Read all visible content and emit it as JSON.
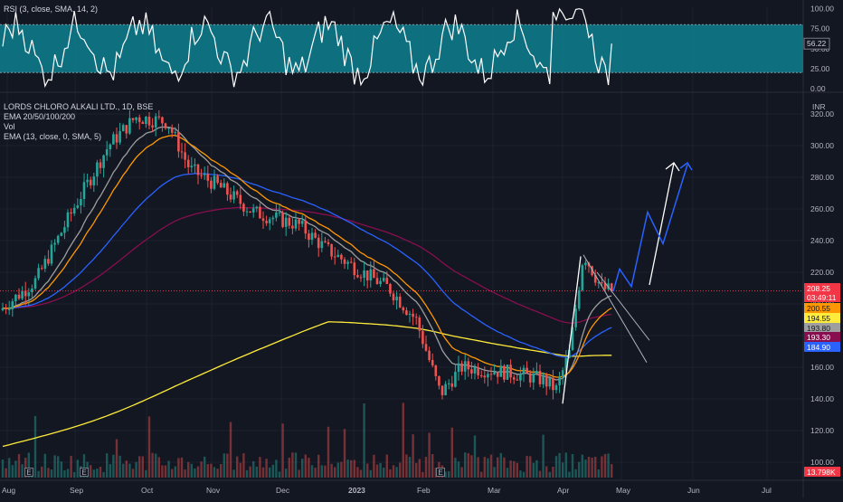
{
  "rsi_pane": {
    "legend": "RSI (3, close, SMA, 14, 2)",
    "band_color": "#0e7f8f",
    "current_value": "56.22",
    "y_ticks": [
      "100.00",
      "75.00",
      "50.00",
      "25.00",
      "0.00"
    ]
  },
  "price_pane": {
    "title": "LORDS CHLORO ALKALI LTD., 1D, BSE",
    "legend_lines": [
      "EMA 20/50/100/200",
      "Vol",
      "EMA (13, close, 0, SMA, 5)"
    ],
    "currency": "INR",
    "y_ticks": [
      "320.00",
      "300.00",
      "280.00",
      "260.00",
      "240.00",
      "220.00",
      "200.00",
      "180.00",
      "160.00",
      "140.00",
      "120.00",
      "100.00"
    ],
    "price_labels": [
      {
        "text": "208.25",
        "color": "#f23645"
      },
      {
        "text": "03:49:11",
        "color": "#f23645"
      },
      {
        "text": "200.55",
        "color": "#ff9800"
      },
      {
        "text": "194.55",
        "color": "#ffeb3b"
      },
      {
        "text": "193.80",
        "color": "#9e9e9e"
      },
      {
        "text": "193.30",
        "color": "#880e4f"
      },
      {
        "text": "184.90",
        "color": "#2962ff"
      },
      {
        "text": "13.798K",
        "color": "#f23645"
      }
    ],
    "earnings_marker": "E"
  },
  "x_axis": {
    "labels": [
      "Aug",
      "Sep",
      "Oct",
      "Nov",
      "Dec",
      "2023",
      "Feb",
      "Mar",
      "Apr",
      "May",
      "Jun",
      "Jul"
    ]
  },
  "chart_data": {
    "type": "candlestick",
    "title": "LORDS CHLORO ALKALI LTD., 1D, BSE",
    "ylabel": "INR",
    "ylim": [
      95,
      330
    ],
    "colors": {
      "up": "#26a69a",
      "down": "#ef5350",
      "ema20": "#ff9800",
      "ema50": "#2962ff",
      "ema100": "#880e4f",
      "ema200": "#ffeb3b",
      "ema13": "#9e9e9e",
      "projection": "#2962ff"
    },
    "price_path": [
      {
        "x": "Aug",
        "y": 196
      },
      {
        "x": "Sep",
        "y": 262
      },
      {
        "x": "Oct",
        "y": 318
      },
      {
        "x": "Nov",
        "y": 290
      },
      {
        "x": "Dec",
        "y": 246
      },
      {
        "x": "2023",
        "y": 212
      },
      {
        "x": "Feb",
        "y": 143
      },
      {
        "x": "Mar",
        "y": 158
      },
      {
        "x": "Apr",
        "y": 148
      },
      {
        "x": "Apr",
        "y": 232
      },
      {
        "x": "May",
        "y": 208.25
      }
    ],
    "last": {
      "close": 208.25,
      "ema20": 200.55,
      "ema200": 194.55,
      "ema13": 193.8,
      "ema100": 193.3,
      "ema50": 184.9,
      "volume": "13.798K"
    },
    "projection_path": [
      208,
      225,
      212,
      258,
      237,
      288
    ],
    "rsi": {
      "last": 56.22,
      "band": [
        20,
        80
      ]
    }
  }
}
